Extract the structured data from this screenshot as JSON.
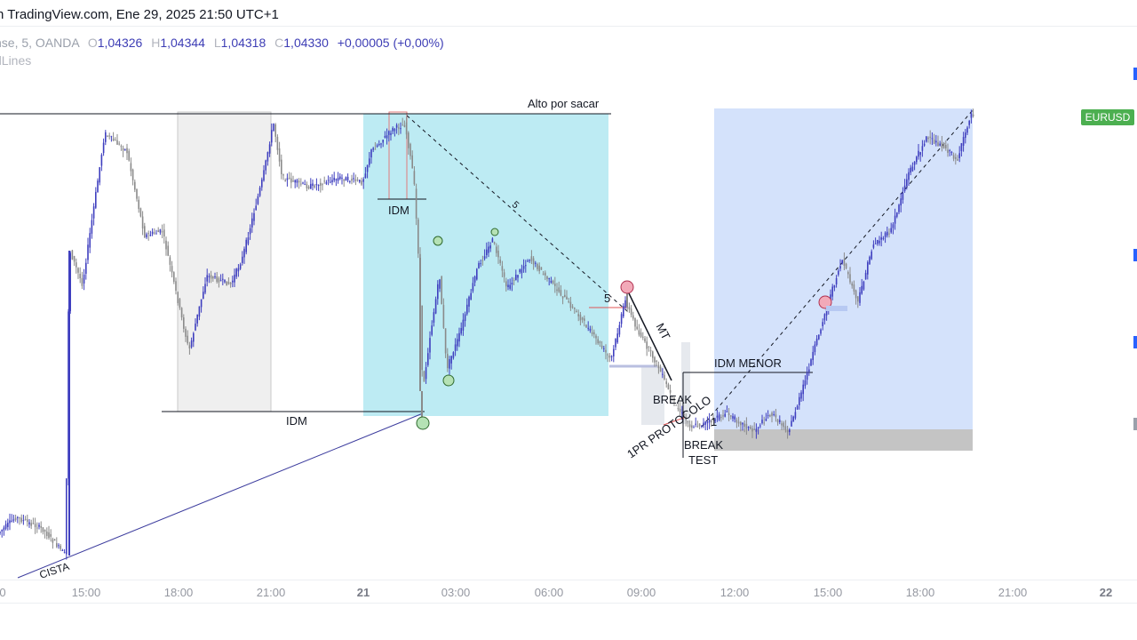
{
  "header": {
    "title": "n TradingView.com, Ene 29, 2025 21:50 UTC+1"
  },
  "legend": {
    "symbol": "nse, 5, OANDA",
    "open_key": "O",
    "open": "1,04326",
    "high_key": "H",
    "high": "1,04344",
    "low_key": "L",
    "low": "1,04318",
    "close_key": "C",
    "close": "1,04330",
    "change": "+0,00005 (+0,00%)",
    "indicator": "dLines"
  },
  "price_badge": "EURUSD",
  "time_axis": [
    "0",
    "15:00",
    "18:00",
    "21:00",
    "21",
    "03:00",
    "06:00",
    "09:00",
    "12:00",
    "15:00",
    "18:00",
    "21:00",
    "22"
  ],
  "annotations": {
    "alto_por_sacar": "Alto por sacar",
    "idm_top": "IDM",
    "idm_bottom": "IDM",
    "five_diag": "5",
    "five_label": "5",
    "mt": "MT",
    "break_upper": "BREAK",
    "protocol": "1PR PROTOCOLO",
    "break_lower": "BREAK",
    "test": "TEST",
    "idm_menor": "IDM MENOR",
    "one": "1",
    "cista": "CISTA"
  },
  "colors": {
    "bull_candle": "#3f3fbf",
    "bear_candle": "#8a8a8a",
    "cyan_zone": "#b9eaf2",
    "blue_zone": "#d3e1fb",
    "gray_zone": "#eeeeee",
    "badge": "#4caf50"
  }
}
